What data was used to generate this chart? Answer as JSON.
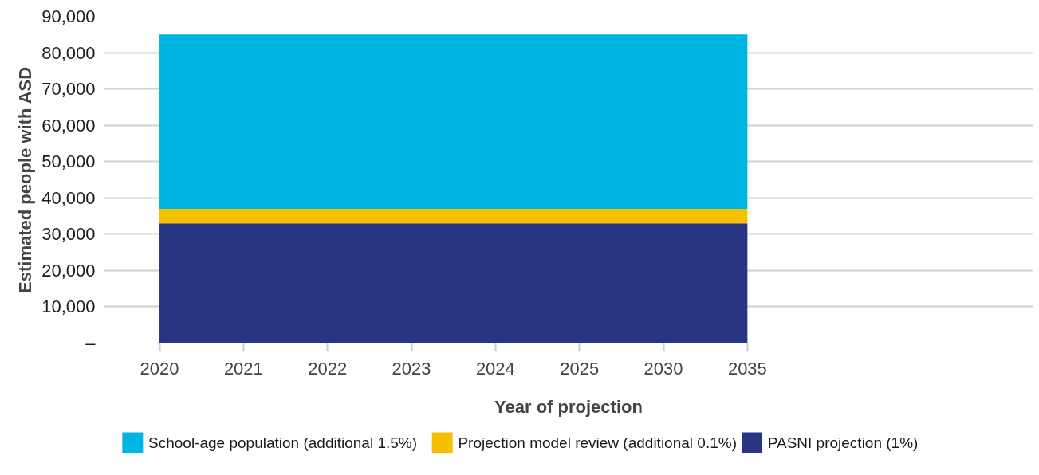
{
  "chart_data": {
    "type": "area",
    "stacked": true,
    "xlabel": "Year of projection",
    "ylabel": "Estimated people with ASD",
    "categories": [
      "2020",
      "2021",
      "2022",
      "2023",
      "2024",
      "2025",
      "2030",
      "2035"
    ],
    "series": [
      {
        "name": "PASNI projection (1%)",
        "color": "#283583",
        "values": [
          33000,
          33000,
          33000,
          33000,
          33000,
          33000,
          33000,
          33000
        ]
      },
      {
        "name": "Projection model review (additional 0.1%)",
        "color": "#f5c000",
        "values": [
          4000,
          4000,
          4000,
          4000,
          4000,
          4000,
          4000,
          4000
        ]
      },
      {
        "name": "School-age population (additional 1.5%)",
        "color": "#00b5e2",
        "values": [
          48000,
          48000,
          48000,
          48000,
          48000,
          48000,
          48000,
          48000
        ]
      }
    ],
    "ylim": [
      0,
      90000
    ],
    "yticks": [
      {
        "value": 0,
        "label": "–"
      },
      {
        "value": 10000,
        "label": "10,000"
      },
      {
        "value": 20000,
        "label": "20,000"
      },
      {
        "value": 30000,
        "label": "30,000"
      },
      {
        "value": 40000,
        "label": "40,000"
      },
      {
        "value": 50000,
        "label": "50,000"
      },
      {
        "value": 60000,
        "label": "60,000"
      },
      {
        "value": 70000,
        "label": "70,000"
      },
      {
        "value": 80000,
        "label": "80,000"
      },
      {
        "value": 90000,
        "label": "90,000"
      }
    ],
    "grid": "y",
    "legend": "bottom"
  }
}
